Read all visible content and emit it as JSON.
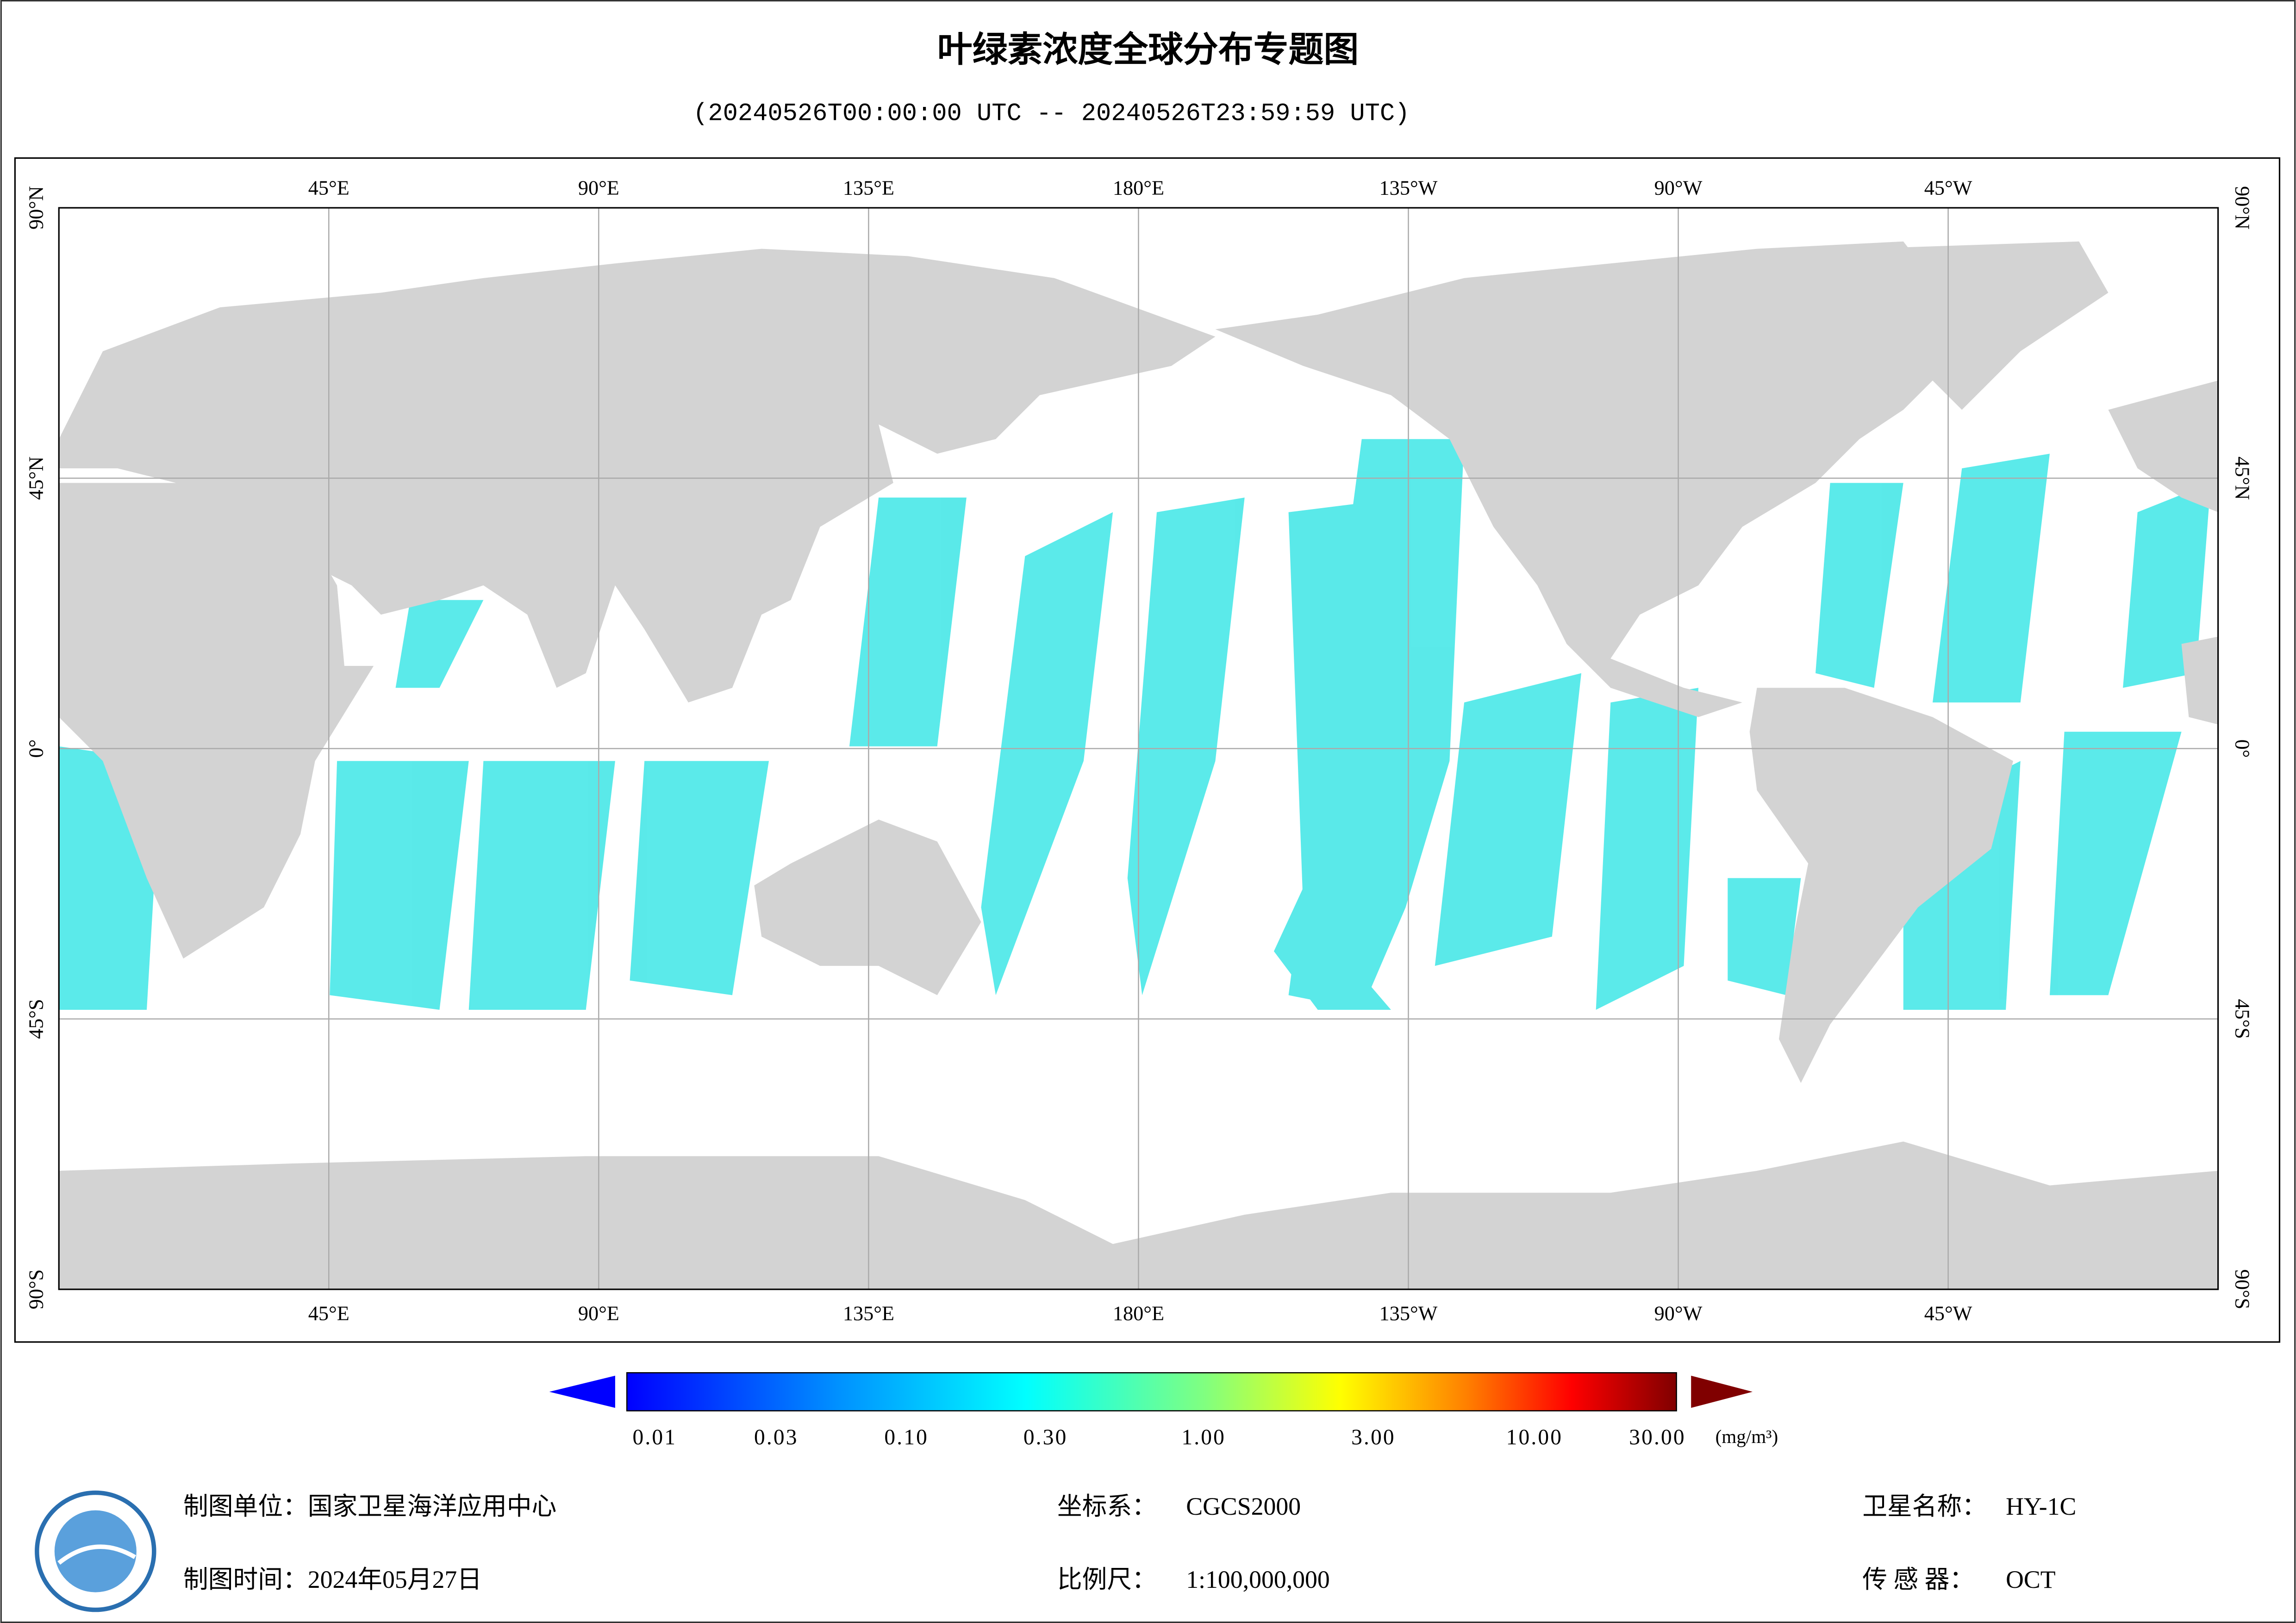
{
  "title": "叶绿素浓度全球分布专题图",
  "subtitle": "(20240526T00:00:00 UTC -- 20240526T23:59:59 UTC)",
  "map": {
    "lon_labels": [
      "45°E",
      "90°E",
      "135°E",
      "180°E",
      "135°W",
      "90°W",
      "45°W"
    ],
    "lat_labels": [
      "90°N",
      "45°N",
      "0°",
      "45°S",
      "90°S"
    ]
  },
  "colorbar": {
    "labels": [
      "0.01",
      "0.03",
      "0.10",
      "0.30",
      "1.00",
      "3.00",
      "10.00",
      "30.00"
    ],
    "unit": "(mg/m³)"
  },
  "footer": {
    "unit": "制图单位：国家卫星海洋应用中心",
    "date": "制图时间：2024年05月27日",
    "crs_label": "坐标系：",
    "crs": "CGCS2000",
    "scale_label": "比例尺：",
    "scale": "1:100,000,000",
    "satellite_label": "卫星名称：",
    "satellite": "HY-1C",
    "sensor_label": "传 感 器：",
    "sensor": "OCT"
  }
}
